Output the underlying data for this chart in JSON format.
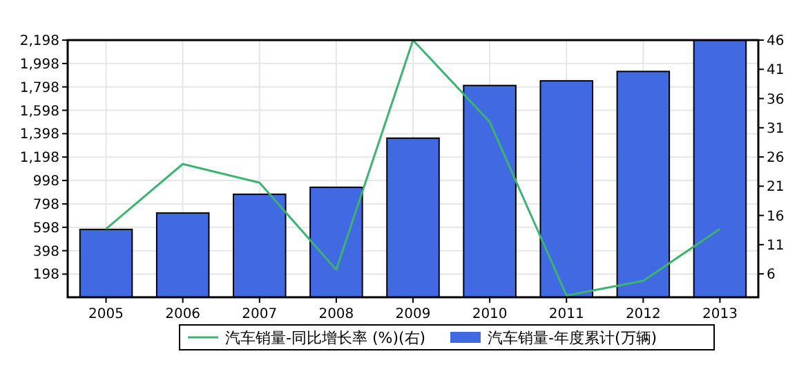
{
  "chart_data": {
    "type": "bar",
    "categories": [
      "2005",
      "2006",
      "2007",
      "2008",
      "2009",
      "2010",
      "2011",
      "2012",
      "2013"
    ],
    "series": [
      {
        "name": "汽车销量-同比增长率 (%)(右)",
        "type": "line",
        "axis": "y2",
        "color": "#3cb371",
        "values": [
          13.7,
          24.8,
          21.6,
          6.7,
          46,
          32,
          2.3,
          4.8,
          13.7
        ]
      },
      {
        "name": "汽车销量-年度累计(万辆)",
        "color": "#4169e1",
        "values": [
          580,
          720,
          880,
          940,
          1360,
          1810,
          1850,
          1930,
          2198
        ]
      }
    ],
    "ylim": [
      0,
      2198
    ],
    "yticks": [
      198,
      398,
      598,
      798,
      998,
      {
        "value": 1198,
        "label": "1,198"
      },
      {
        "value": 1398,
        "label": "1,398"
      },
      {
        "value": 1598,
        "label": "1,598"
      },
      {
        "value": 1798,
        "label": "1,798"
      },
      {
        "value": 1998,
        "label": "1,998"
      },
      {
        "value": 2198,
        "label": "2,198"
      }
    ],
    "y2lim": [
      2,
      46
    ],
    "y2ticks": [
      6,
      11,
      16,
      21,
      26,
      31,
      36,
      41,
      46
    ],
    "grid": true,
    "legend": "bottom"
  }
}
